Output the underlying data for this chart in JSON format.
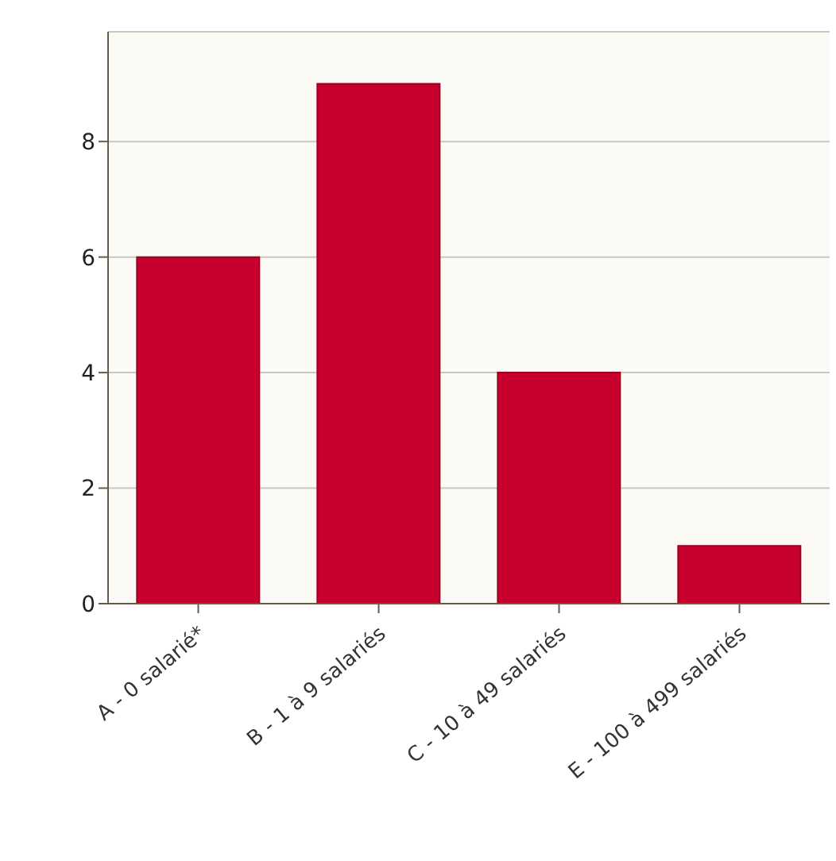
{
  "chart_data": {
    "type": "bar",
    "categories": [
      "A - 0 salarié*",
      "B - 1 à 9 salariés",
      "C - 10 à 49 salariés",
      "E - 100 à 499 salariés"
    ],
    "values": [
      6,
      9,
      4,
      1
    ],
    "color": "#c8002e",
    "ylim": [
      0,
      9.9
    ],
    "yticks": [
      0,
      2,
      4,
      6,
      8
    ],
    "grid": "y"
  }
}
